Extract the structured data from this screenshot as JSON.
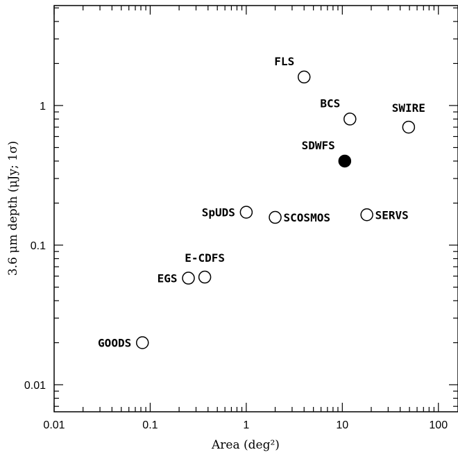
{
  "chart_data": {
    "type": "scatter",
    "title": "",
    "xlabel": "Area (deg²)",
    "ylabel": "3.6 μm depth (μJy; 1σ)",
    "xscale": "log",
    "yscale": "log",
    "xlim": [
      0.01,
      160
    ],
    "ylim": [
      0.0064,
      5.2
    ],
    "x_ticks": [
      0.01,
      0.1,
      1,
      10,
      100
    ],
    "x_tick_labels": [
      "0.01",
      "0.1",
      "1",
      "10",
      "100"
    ],
    "y_ticks": [
      0.01,
      0.1,
      1
    ],
    "y_tick_labels": [
      "0.01",
      "0.1",
      "1"
    ],
    "grid": false,
    "points": [
      {
        "label": "FLS",
        "x": 4.0,
        "y": 1.6,
        "filled": false,
        "label_side": "above-left"
      },
      {
        "label": "BCS",
        "x": 12,
        "y": 0.8,
        "filled": false,
        "label_side": "above-left"
      },
      {
        "label": "SWIRE",
        "x": 49,
        "y": 0.7,
        "filled": false,
        "label_side": "above"
      },
      {
        "label": "SDWFS",
        "x": 10.6,
        "y": 0.4,
        "filled": true,
        "label_side": "above-left"
      },
      {
        "label": "SpUDS",
        "x": 1.0,
        "y": 0.172,
        "filled": false,
        "label_side": "left"
      },
      {
        "label": "SCOSMOS",
        "x": 2.0,
        "y": 0.158,
        "filled": false,
        "label_side": "right"
      },
      {
        "label": "SERVS",
        "x": 18,
        "y": 0.165,
        "filled": false,
        "label_side": "right"
      },
      {
        "label": "E-CDFS",
        "x": 0.37,
        "y": 0.059,
        "filled": false,
        "label_side": "above"
      },
      {
        "label": "EGS",
        "x": 0.25,
        "y": 0.058,
        "filled": false,
        "label_side": "left"
      },
      {
        "label": "GOODS",
        "x": 0.083,
        "y": 0.02,
        "filled": false,
        "label_side": "left"
      }
    ]
  }
}
